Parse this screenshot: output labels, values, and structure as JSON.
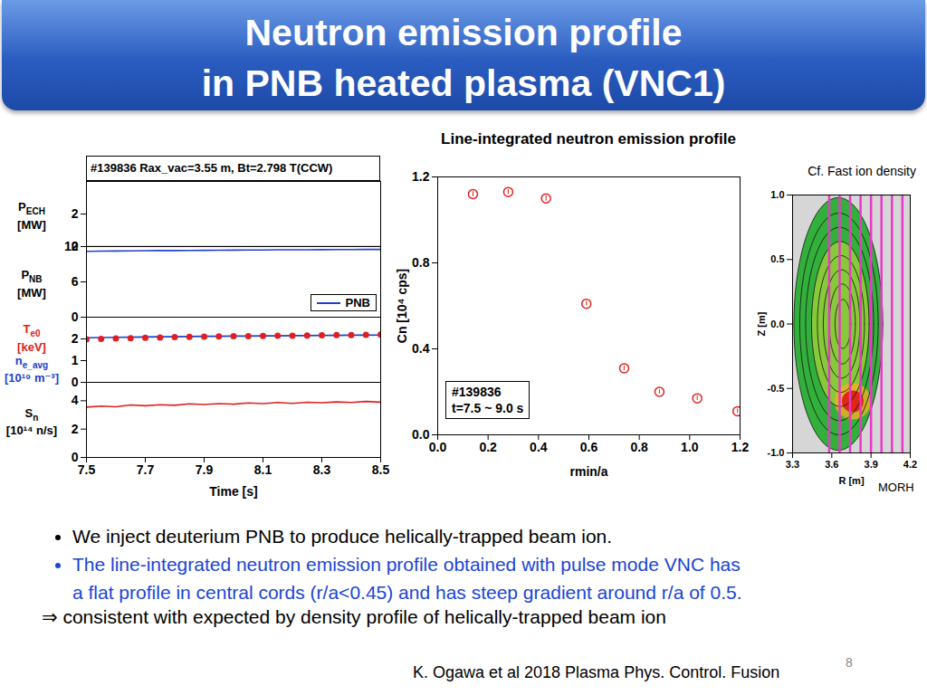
{
  "title": [
    "Neutron emission profile",
    "in PNB heated plasma (VNC1)"
  ],
  "chart_data": [
    {
      "type": "line",
      "title": "#139836 Rax_vac=3.55 m, Bt=2.798 T(CCW)",
      "xlabel": "Time [s]",
      "xlim": [
        7.5,
        8.5
      ],
      "xticks": [
        7.5,
        7.7,
        7.9,
        8.1,
        8.3,
        8.5
      ],
      "x": [
        7.5,
        7.55,
        7.6,
        7.65,
        7.7,
        7.75,
        7.8,
        7.85,
        7.9,
        7.95,
        8.0,
        8.05,
        8.1,
        8.15,
        8.2,
        8.25,
        8.3,
        8.35,
        8.4,
        8.45,
        8.5
      ],
      "panels": [
        {
          "ylabel": "PECH [MW]",
          "ylim": [
            0,
            4
          ],
          "yticks": [
            0,
            2
          ],
          "tick_labels": "y",
          "series": [
            {
              "color": "#e02020",
              "values": [
                0,
                0,
                0,
                0,
                0,
                0,
                0,
                0,
                0,
                0,
                0,
                0,
                0,
                0,
                0,
                0,
                0,
                0,
                0,
                0,
                0
              ]
            }
          ]
        },
        {
          "ylabel": "PNB [MW]",
          "ylim": [
            0,
            12
          ],
          "yticks": [
            0,
            6,
            12
          ],
          "legend": "bottom right",
          "tick_labels": "y",
          "series": [
            {
              "name": "PNB",
              "color": "#2040d0",
              "values": [
                11.2,
                11.22,
                11.25,
                11.27,
                11.3,
                11.32,
                11.33,
                11.35,
                11.37,
                11.38,
                11.4,
                11.42,
                11.43,
                11.45,
                11.46,
                11.47,
                11.48,
                11.5,
                11.5,
                11.52,
                11.52
              ]
            }
          ]
        },
        {
          "ylim": [
            0,
            3
          ],
          "yticks": [
            0,
            1,
            2
          ],
          "tick_labels": "y",
          "series": [
            {
              "name": "Te0 [keV]",
              "color": "#e02020",
              "marker": "circle",
              "values": [
                1.98,
                2.0,
                2.02,
                2.03,
                2.05,
                2.06,
                2.08,
                2.09,
                2.1,
                2.11,
                2.12,
                2.13,
                2.14,
                2.15,
                2.15,
                2.16,
                2.17,
                2.18,
                2.18,
                2.19,
                2.2
              ]
            },
            {
              "name": "ne_avg [10¹⁹ m⁻³]",
              "color": "#2040d0",
              "values": [
                2.05,
                2.06,
                2.07,
                2.08,
                2.09,
                2.1,
                2.1,
                2.11,
                2.12,
                2.12,
                2.13,
                2.13,
                2.14,
                2.14,
                2.15,
                2.15,
                2.16,
                2.16,
                2.17,
                2.17,
                2.18
              ]
            }
          ]
        },
        {
          "ylabel": "Sn [10¹⁴ n/s]",
          "ylim": [
            0,
            5.3
          ],
          "yticks": [
            0,
            2,
            4
          ],
          "series": [
            {
              "color": "#e02020",
              "values": [
                3.55,
                3.62,
                3.58,
                3.7,
                3.65,
                3.72,
                3.68,
                3.78,
                3.74,
                3.8,
                3.76,
                3.85,
                3.8,
                3.88,
                3.82,
                3.9,
                3.86,
                3.92,
                3.88,
                3.95,
                3.9
              ]
            }
          ]
        }
      ]
    },
    {
      "type": "scatter",
      "title": "Line-integrated neutron emission profile",
      "xlabel": "rmin/a",
      "ylabel": "Cn [10⁴ cps]",
      "x": [
        0.14,
        0.28,
        0.43,
        0.59,
        0.74,
        0.88,
        1.03,
        1.19
      ],
      "values": [
        1.12,
        1.13,
        1.1,
        0.61,
        0.31,
        0.2,
        0.17,
        0.11
      ],
      "errors": [
        0.012,
        0.012,
        0.012,
        0.01,
        0.01,
        0.01,
        0.01,
        0.01
      ],
      "color": "#e02020",
      "marker": "circle",
      "xlim": [
        0,
        1.2
      ],
      "xticks": [
        {
          "value": 0,
          "label": "0.0"
        },
        0.2,
        0.4,
        0.6,
        0.8,
        {
          "value": 1,
          "label": "1.0"
        },
        1.2
      ],
      "ylim": [
        0,
        1.2
      ],
      "yticks": [
        {
          "value": 0,
          "label": "0.0"
        },
        0.4,
        0.8,
        1.2
      ],
      "annotation": [
        "#139836",
        "t=7.5 ~ 9.0 s"
      ]
    },
    {
      "type": "contour",
      "title": "Cf. Fast ion density",
      "xlabel": "R [m]",
      "ylabel": "Z [m]",
      "xlim": [
        3.3,
        4.2
      ],
      "xticks": [
        3.3,
        3.6,
        3.9,
        4.2
      ],
      "ylim": [
        -1,
        1
      ],
      "yticks": [
        {
          "value": -1,
          "label": "-1.0"
        },
        -0.5,
        {
          "value": 0,
          "label": "0.0"
        },
        0.5,
        {
          "value": 1,
          "label": "1.0"
        }
      ],
      "surfaces": [
        {
          "R": 3.65,
          "Z": 0,
          "dr": 0.34,
          "dz": 0.98
        },
        {
          "R": 3.655,
          "Z": 0,
          "dr": 0.3,
          "dz": 0.86
        },
        {
          "R": 3.66,
          "Z": 0,
          "dr": 0.26,
          "dz": 0.75
        },
        {
          "R": 3.665,
          "Z": 0,
          "dr": 0.22,
          "dz": 0.64
        },
        {
          "R": 3.67,
          "Z": 0,
          "dr": 0.18,
          "dz": 0.53
        },
        {
          "R": 3.675,
          "Z": 0,
          "dr": 0.14,
          "dz": 0.42
        },
        {
          "R": 3.68,
          "Z": 0,
          "dr": 0.1,
          "dz": 0.31
        },
        {
          "R": 3.685,
          "Z": 0,
          "dr": 0.06,
          "dz": 0.19
        }
      ],
      "density_peak": {
        "R": 3.76,
        "Z": -0.6
      },
      "chords": {
        "name": "MORH",
        "color": "#e838c8",
        "R": [
          3.58,
          3.66,
          3.74,
          3.82,
          3.9,
          3.98,
          4.06,
          4.14
        ]
      }
    }
  ],
  "bullets": [
    {
      "lines": [
        "We inject deuterium PNB to produce helically-trapped beam ion."
      ],
      "color": "#000000"
    },
    {
      "lines": [
        "The line-integrated neutron emission profile obtained with pulse mode VNC has",
        "a flat profile in central cords (r/a<0.45) and has steep gradient around r/a of 0.5."
      ],
      "color": "#1a45d6"
    }
  ],
  "conclusion": "⇒ consistent with expected by density profile of helically-trapped beam ion",
  "citation": "K. Ogawa et al 2018 Plasma Phys. Control. Fusion",
  "page": 8
}
